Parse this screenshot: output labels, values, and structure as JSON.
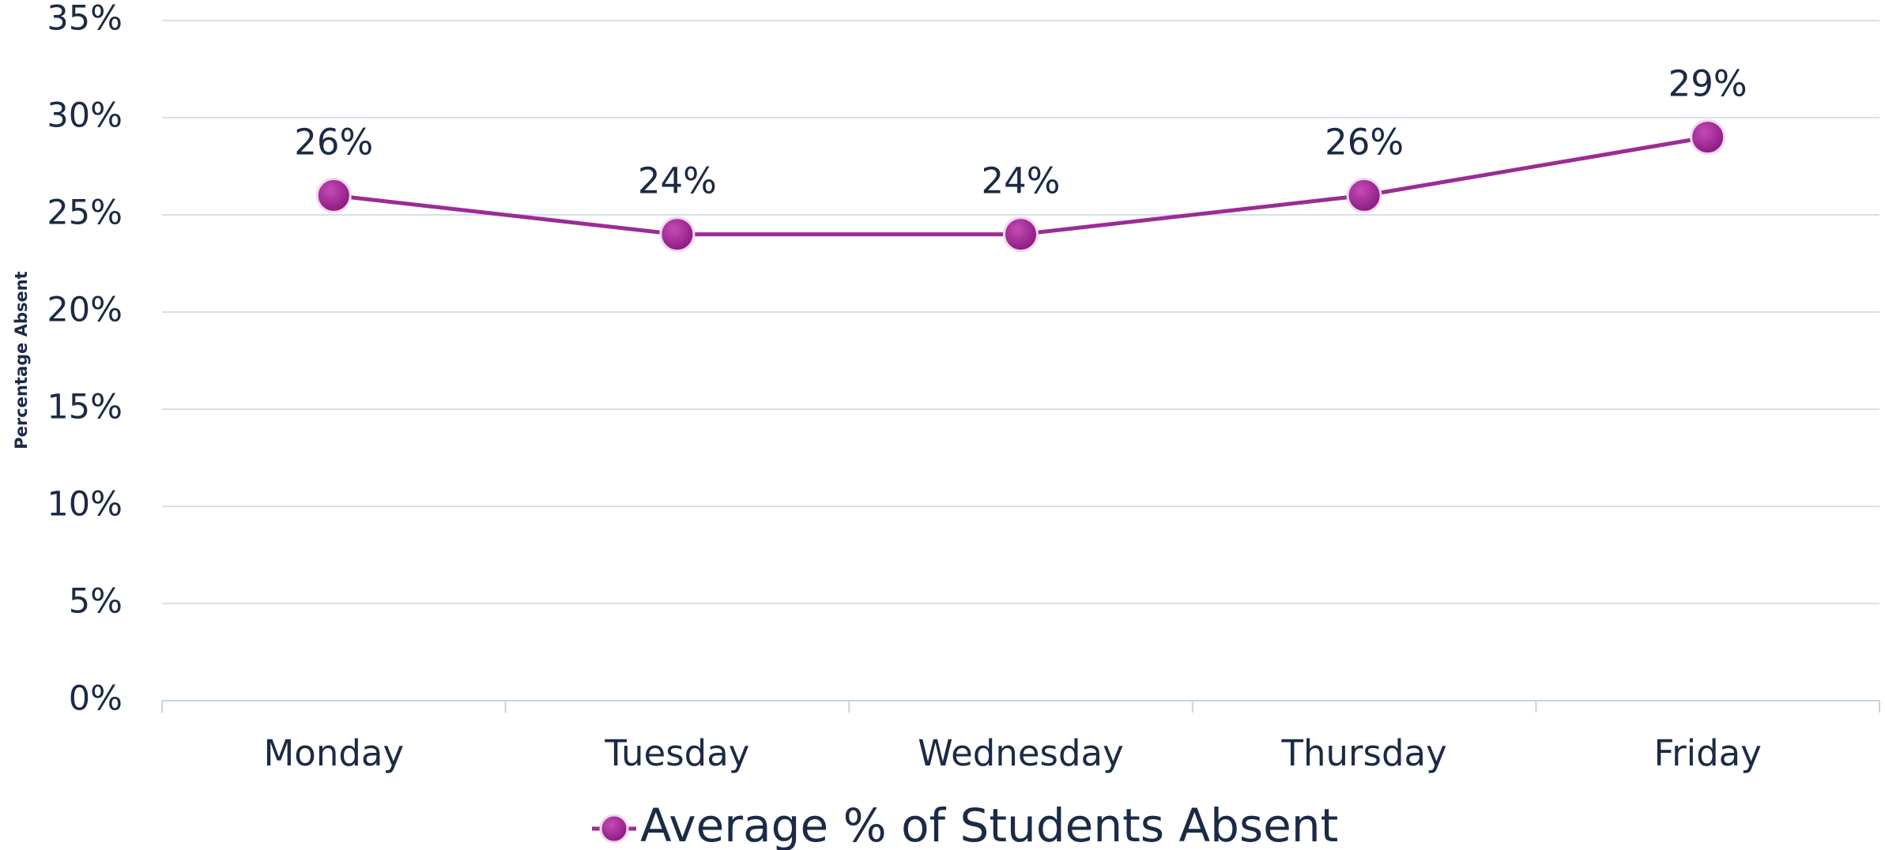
{
  "chart_data": {
    "type": "line",
    "y_axis_label": "Percentage Absent",
    "categories": [
      "Monday",
      "Tuesday",
      "Wednesday",
      "Thursday",
      "Friday"
    ],
    "series": [
      {
        "name": "Average % of Students Absent",
        "color": "#9c2b94",
        "values": [
          26,
          24,
          24,
          26,
          29
        ],
        "value_labels": [
          "26%",
          "24%",
          "24%",
          "26%",
          "29%"
        ]
      }
    ],
    "ylim": [
      0,
      35
    ],
    "yticks": [
      {
        "value": 0,
        "label": "0%"
      },
      {
        "value": 5,
        "label": "5%"
      },
      {
        "value": 10,
        "label": "10%"
      },
      {
        "value": 15,
        "label": "15%"
      },
      {
        "value": 20,
        "label": "20%"
      },
      {
        "value": 25,
        "label": "25%"
      },
      {
        "value": 30,
        "label": "30%"
      },
      {
        "value": 35,
        "label": "35%"
      }
    ],
    "grid": true,
    "legend": "bottom"
  }
}
